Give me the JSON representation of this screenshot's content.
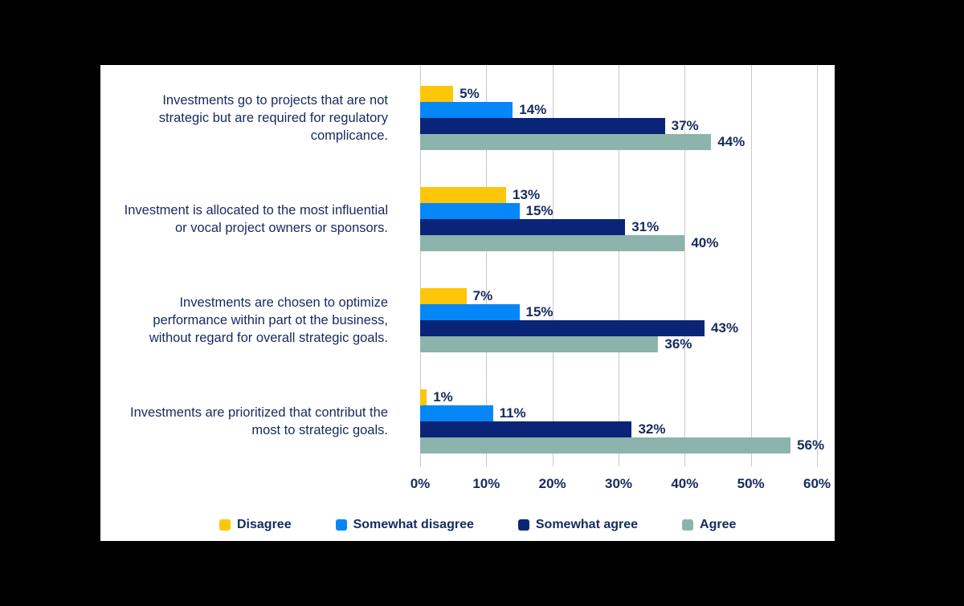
{
  "page": {
    "background": "#000000",
    "card_background": "#ffffff"
  },
  "chart_data": {
    "type": "bar",
    "orientation": "horizontal",
    "title": "",
    "categories": [
      "Investments go to projects that are not strategic but are required for regulatory complicance.",
      "Investment is allocated to the most influential or vocal project owners or sponsors.",
      "Investments are chosen to optimize performance within part ot the business, without regard for overall strategic goals.",
      "Investments are prioritized that contribut the most to strategic goals."
    ],
    "series": [
      {
        "name": "Disagree",
        "color": "#FDC608",
        "values": [
          5,
          13,
          7,
          1
        ]
      },
      {
        "name": "Somewhat disagree",
        "color": "#0587F8",
        "values": [
          14,
          15,
          15,
          11
        ]
      },
      {
        "name": "Somewhat agree",
        "color": "#0A2577",
        "values": [
          37,
          31,
          43,
          32
        ]
      },
      {
        "name": "Agree",
        "color": "#8CB4AC",
        "values": [
          44,
          40,
          36,
          56
        ]
      }
    ],
    "value_suffix": "%",
    "x_ticks": [
      "0%",
      "10%",
      "20%",
      "30%",
      "40%",
      "50%",
      "60%"
    ],
    "xlim": [
      0,
      60
    ],
    "grid": "vertical",
    "gridline_color": "#C9C9C9",
    "text_color": "#152A5E",
    "legend_position": "bottom"
  }
}
